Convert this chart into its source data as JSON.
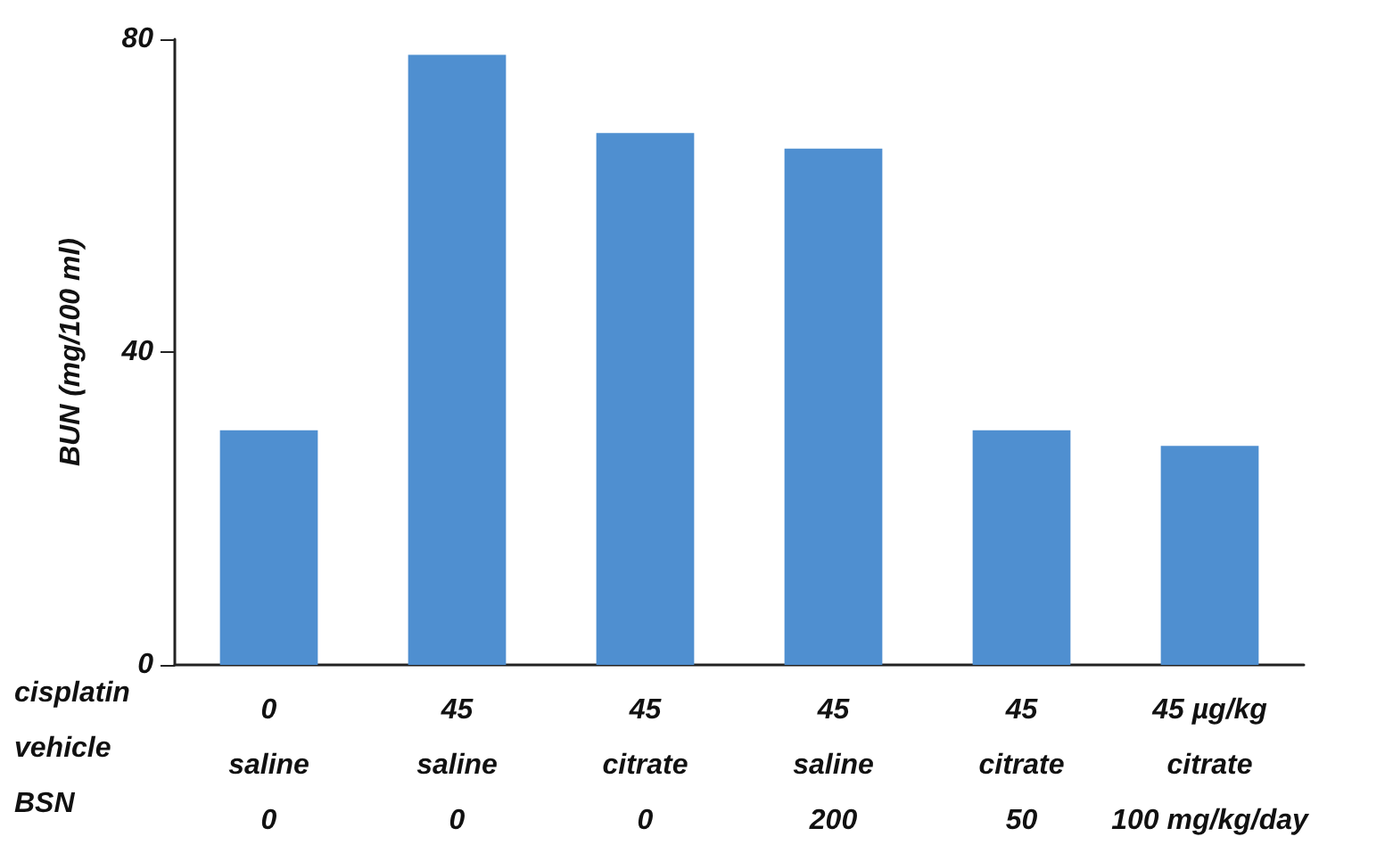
{
  "chart_data": {
    "type": "bar",
    "ylabel": "BUN (mg/100 ml)",
    "categories": [
      "0\nsaline\n0",
      "45\nsaline\n0",
      "45\ncitrate\n0",
      "45\nsaline\n200",
      "45\ncitrate\n50",
      "45 µg/kg\ncitrate\n100 mg/kg/day"
    ],
    "values": [
      30,
      78,
      68,
      66,
      30,
      28
    ],
    "color": "#4f8fd0",
    "ylim": [
      0,
      80
    ],
    "yticks": [
      0,
      40,
      80
    ],
    "grid": false,
    "annotations": [
      "cisplatin",
      "vehicle",
      "BSN"
    ]
  }
}
